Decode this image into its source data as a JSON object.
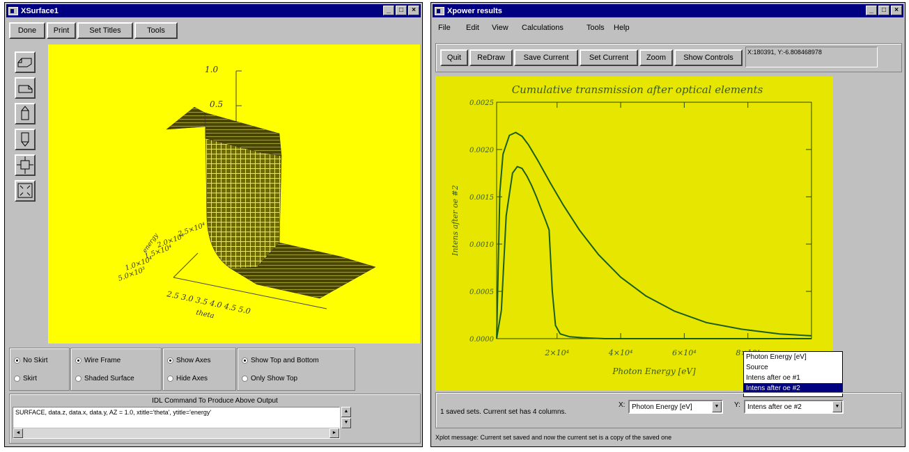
{
  "surface_window": {
    "title": "XSurface1",
    "buttons": [
      "Done",
      "Print",
      "Set Titles",
      "Tools"
    ],
    "plot": {
      "z_ticks": [
        "1.0",
        "0.5"
      ],
      "y_ticks": [
        "2.5×10⁴",
        "2.0×10⁴",
        "1.5×10⁴",
        "1.0×10⁴",
        "5.0×10³"
      ],
      "y_title": "energy",
      "x_ticks": "2.5 3.0 3.5 4.0 4.5 5.0",
      "x_title": "theta",
      "background": "#ffff00"
    },
    "options": {
      "no_skirt": "No Skirt",
      "skirt": "Skirt",
      "wire_frame": "Wire Frame",
      "shaded_surface": "Shaded Surface",
      "show_axes": "Show Axes",
      "hide_axes": "Hide Axes",
      "show_top_bottom": "Show Top and Bottom",
      "only_show_top": "Only Show Top"
    },
    "command_label": "IDL Command To Produce Above Output",
    "command_text": "SURFACE, data.z, data.x, data.y, AZ = 1.0, xtitle='theta', ytitle='energy'"
  },
  "xpower_window": {
    "title": "Xpower results",
    "menu": [
      "File",
      "Edit",
      "View",
      "Calculations",
      "Tools",
      "Help"
    ],
    "buttons": [
      "Quit",
      "ReDraw",
      "Save Current",
      "Set Current",
      "Zoom",
      "Show Controls"
    ],
    "coord_readout": "X:180391, Y:-6.808468978",
    "status": "1 saved sets. Current set has 4 columns.",
    "x_label": "X:",
    "y_label": "Y:",
    "x_select": "Photon Energy [eV]",
    "y_select": "Intens after oe #2",
    "dropdown_options": [
      "Photon Energy [eV]",
      "Source",
      "Intens after oe #1",
      "Intens after oe #2"
    ],
    "dropdown_selected_index": 3,
    "message": "Xplot message: Current set saved and now the current set is a copy of the saved one"
  },
  "chart_data": {
    "type": "line",
    "title": "Cumulative transmission after optical elements",
    "xlabel": "Photon Energy [eV]",
    "ylabel": "Intens after oe #2",
    "x_tick_labels": [
      "2×10⁴",
      "4×10⁴",
      "6×10⁴",
      "8×10⁴"
    ],
    "x_tick_values": [
      20000,
      40000,
      60000,
      80000
    ],
    "y_tick_labels": [
      "0.0000",
      "0.0005",
      "0.0010",
      "0.0015",
      "0.0020",
      "0.0025"
    ],
    "y_tick_values": [
      0,
      0.0005,
      0.001,
      0.0015,
      0.002,
      0.0025
    ],
    "xlim": [
      1000,
      100000
    ],
    "ylim": [
      0,
      0.0025
    ],
    "background": "#e6e600",
    "line_color": "#1a5e1a",
    "series": [
      {
        "x": [
          1000,
          2000,
          3000,
          5000,
          7000,
          9000,
          11000,
          14000,
          18000,
          22000,
          27000,
          33000,
          40000,
          48000,
          57000,
          67000,
          78000,
          90000,
          100000
        ],
        "y": [
          0,
          0.00155,
          0.00195,
          0.00215,
          0.00218,
          0.00214,
          0.00205,
          0.00188,
          0.00164,
          0.00141,
          0.00115,
          0.00089,
          0.00065,
          0.00045,
          0.00029,
          0.00017,
          0.0001,
          5e-05,
          3e-05
        ]
      },
      {
        "x": [
          1000,
          2500,
          4000,
          6000,
          7500,
          9000,
          10500,
          12000,
          13500,
          15000,
          16500,
          17500,
          18500,
          19500,
          21000,
          24000,
          28000,
          35000,
          50000,
          100000
        ],
        "y": [
          0,
          0.0003,
          0.0013,
          0.00175,
          0.00182,
          0.0018,
          0.00172,
          0.00162,
          0.0015,
          0.00137,
          0.00124,
          0.00115,
          0.0005,
          0.00014,
          5e-05,
          2e-05,
          1e-05,
          0,
          0,
          0
        ]
      }
    ]
  }
}
